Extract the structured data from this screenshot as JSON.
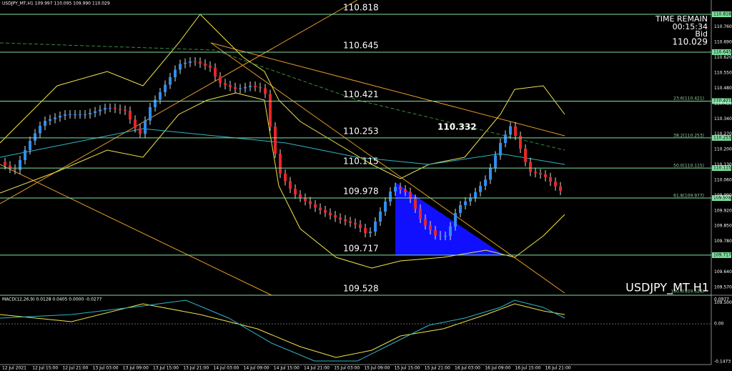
{
  "header": "USDJPY_MT,H1  109.997 110.095 109.990 110.029",
  "levels": [
    "110.818",
    "110.645",
    "110.421",
    "110.253",
    "110.115",
    "109.978",
    "109.717",
    "109.528"
  ],
  "fib_labels": [
    "23.6(110.421)",
    "38.2(110.253)",
    "50.0(110.115)",
    "61.8(109.977)",
    "100.0(109.528)"
  ],
  "annotation": "110.332",
  "time_remain": {
    "label": "TIME REMAIN",
    "time": "00:15:34",
    "bid_label": "Bid",
    "bid": "110.029"
  },
  "symbol": "USDJPY_MT H1",
  "price_axis": [
    "110.760",
    "110.690",
    "110.620",
    "110.550",
    "110.480",
    "110.410",
    "110.340",
    "110.270",
    "110.200",
    "110.130",
    "110.060",
    "109.990",
    "109.920",
    "109.850",
    "109.780",
    "109.640",
    "109.570",
    "109.500"
  ],
  "macd": {
    "label": "MACD(12,26,9) 0.0128 0.0405 0.0000 -0.0277",
    "axis": [
      "0.0977",
      "0.00",
      "-0.1473"
    ]
  },
  "time_axis": [
    "12 Jul 2021",
    "12 Jul 15:00",
    "12 Jul 21:00",
    "13 Jul 03:00",
    "13 Jul 09:00",
    "13 Jul 15:00",
    "13 Jul 21:00",
    "14 Jul 03:00",
    "14 Jul 09:00",
    "14 Jul 15:00",
    "14 Jul 21:00",
    "15 Jul 03:00",
    "15 Jul 09:00",
    "15 Jul 15:00",
    "15 Jul 21:00",
    "16 Jul 03:00",
    "16 Jul 09:00",
    "16 Jul 15:00",
    "16 Jul 21:00"
  ]
}
